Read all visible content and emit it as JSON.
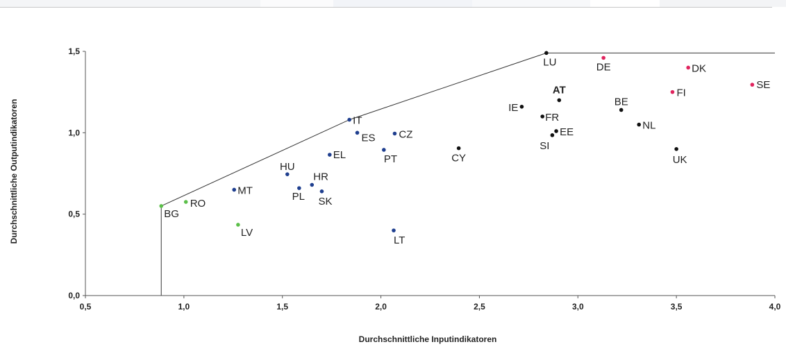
{
  "chart_data": {
    "type": "scatter",
    "xlabel": "Durchschnittliche Inputindikatoren",
    "ylabel": "Durchschnittliche Outputindikatoren",
    "xlim": [
      0.5,
      4.0
    ],
    "ylim": [
      0.0,
      1.5
    ],
    "xticks": [
      "0,5",
      "1,0",
      "1,5",
      "2,0",
      "2,5",
      "3,0",
      "3,5",
      "4,0"
    ],
    "yticks": [
      "0,0",
      "0,5",
      "1,0",
      "1,5"
    ],
    "grid": false,
    "colors": {
      "green": "#5cbf4a",
      "blue": "#1f3f8f",
      "black": "#111111",
      "red": "#e0245e",
      "highlight": "#c4007a"
    },
    "frontier": [
      [
        0.885,
        0.0
      ],
      [
        0.885,
        0.55
      ],
      [
        1.84,
        1.08
      ],
      [
        2.84,
        1.49
      ],
      [
        4.0,
        1.49
      ]
    ],
    "points": [
      {
        "label": "BG",
        "x": 0.885,
        "y": 0.55,
        "color": "green"
      },
      {
        "label": "RO",
        "x": 1.01,
        "y": 0.575,
        "color": "green"
      },
      {
        "label": "LV",
        "x": 1.275,
        "y": 0.435,
        "color": "green"
      },
      {
        "label": "MT",
        "x": 1.255,
        "y": 0.65,
        "color": "blue"
      },
      {
        "label": "HU",
        "x": 1.525,
        "y": 0.745,
        "color": "blue"
      },
      {
        "label": "PL",
        "x": 1.585,
        "y": 0.66,
        "color": "blue"
      },
      {
        "label": "HR",
        "x": 1.65,
        "y": 0.68,
        "color": "blue"
      },
      {
        "label": "SK",
        "x": 1.7,
        "y": 0.64,
        "color": "blue"
      },
      {
        "label": "EL",
        "x": 1.74,
        "y": 0.865,
        "color": "blue"
      },
      {
        "label": "IT",
        "x": 1.84,
        "y": 1.08,
        "color": "blue"
      },
      {
        "label": "ES",
        "x": 1.88,
        "y": 1.0,
        "color": "blue"
      },
      {
        "label": "PT",
        "x": 2.015,
        "y": 0.895,
        "color": "blue"
      },
      {
        "label": "CZ",
        "x": 2.07,
        "y": 0.995,
        "color": "blue"
      },
      {
        "label": "LT",
        "x": 2.065,
        "y": 0.4,
        "color": "blue"
      },
      {
        "label": "CY",
        "x": 2.395,
        "y": 0.905,
        "color": "black"
      },
      {
        "label": "IE",
        "x": 2.715,
        "y": 1.16,
        "color": "black"
      },
      {
        "label": "FR",
        "x": 2.82,
        "y": 1.1,
        "color": "black"
      },
      {
        "label": "SI",
        "x": 2.87,
        "y": 0.985,
        "color": "black"
      },
      {
        "label": "EE",
        "x": 2.89,
        "y": 1.01,
        "color": "black"
      },
      {
        "label": "AT",
        "x": 2.905,
        "y": 1.2,
        "color": "black",
        "highlight": true
      },
      {
        "label": "LU",
        "x": 2.84,
        "y": 1.49,
        "color": "black"
      },
      {
        "label": "BE",
        "x": 3.22,
        "y": 1.14,
        "color": "black"
      },
      {
        "label": "NL",
        "x": 3.31,
        "y": 1.05,
        "color": "black"
      },
      {
        "label": "UK",
        "x": 3.5,
        "y": 0.9,
        "color": "black"
      },
      {
        "label": "DE",
        "x": 3.13,
        "y": 1.46,
        "color": "red"
      },
      {
        "label": "DK",
        "x": 3.56,
        "y": 1.4,
        "color": "red"
      },
      {
        "label": "FI",
        "x": 3.48,
        "y": 1.25,
        "color": "red"
      },
      {
        "label": "SE",
        "x": 3.885,
        "y": 1.295,
        "color": "red"
      }
    ]
  }
}
